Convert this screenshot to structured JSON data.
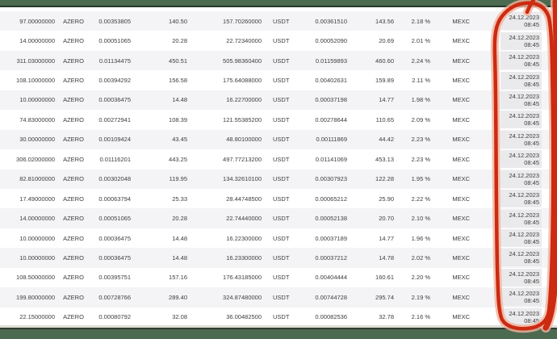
{
  "topbar": {
    "color": "#4c6a50"
  },
  "bottombar": {
    "color": "#4c6a50"
  },
  "table": {
    "columns": [
      "amount",
      "symbol",
      "price",
      "value",
      "total",
      "quote",
      "price_usdt",
      "value_usdt",
      "percent",
      "exchange",
      "datetime"
    ],
    "rows": [
      {
        "amount": "97.00000000",
        "symbol": "AZERO",
        "price": "0.00353805",
        "value": "140.50",
        "total": "157.70260000",
        "quote": "USDT",
        "price2": "0.00361510",
        "value2": "143.56",
        "percent": "2.18 %",
        "exchange": "MEXC",
        "date": "24.12.2023",
        "time": "08:45"
      },
      {
        "amount": "14.00000000",
        "symbol": "AZERO",
        "price": "0.00051065",
        "value": "20.28",
        "total": "22.72340000",
        "quote": "USDT",
        "price2": "0.00052090",
        "value2": "20.69",
        "percent": "2.01 %",
        "exchange": "MEXC",
        "date": "24.12.2023",
        "time": "08:45"
      },
      {
        "amount": "311.03000000",
        "symbol": "AZERO",
        "price": "0.01134475",
        "value": "450.51",
        "total": "505.98360400",
        "quote": "USDT",
        "price2": "0.01159893",
        "value2": "460.60",
        "percent": "2.24 %",
        "exchange": "MEXC",
        "date": "24.12.2023",
        "time": "08:45"
      },
      {
        "amount": "108.10000000",
        "symbol": "AZERO",
        "price": "0.00394292",
        "value": "156.58",
        "total": "175.64088000",
        "quote": "USDT",
        "price2": "0.00402631",
        "value2": "159.89",
        "percent": "2.11 %",
        "exchange": "MEXC",
        "date": "24.12.2023",
        "time": "08:45"
      },
      {
        "amount": "10.00000000",
        "symbol": "AZERO",
        "price": "0.00036475",
        "value": "14.48",
        "total": "16.22700000",
        "quote": "USDT",
        "price2": "0.00037198",
        "value2": "14.77",
        "percent": "1.98 %",
        "exchange": "MEXC",
        "date": "24.12.2023",
        "time": "08:45"
      },
      {
        "amount": "74.83000000",
        "symbol": "AZERO",
        "price": "0.00272941",
        "value": "108.39",
        "total": "121.55385200",
        "quote": "USDT",
        "price2": "0.00278644",
        "value2": "110.65",
        "percent": "2.09 %",
        "exchange": "MEXC",
        "date": "24.12.2023",
        "time": "08:45"
      },
      {
        "amount": "30.00000000",
        "symbol": "AZERO",
        "price": "0.00109424",
        "value": "43.45",
        "total": "48.80100000",
        "quote": "USDT",
        "price2": "0.00111869",
        "value2": "44.42",
        "percent": "2.23 %",
        "exchange": "MEXC",
        "date": "24.12.2023",
        "time": "08:45"
      },
      {
        "amount": "306.02000000",
        "symbol": "AZERO",
        "price": "0.01116201",
        "value": "443.25",
        "total": "497.77213200",
        "quote": "USDT",
        "price2": "0.01141069",
        "value2": "453.13",
        "percent": "2.23 %",
        "exchange": "MEXC",
        "date": "24.12.2023",
        "time": "08:45"
      },
      {
        "amount": "82.81000000",
        "symbol": "AZERO",
        "price": "0.00302048",
        "value": "119.95",
        "total": "134.32610100",
        "quote": "USDT",
        "price2": "0.00307923",
        "value2": "122.28",
        "percent": "1.95 %",
        "exchange": "MEXC",
        "date": "24.12.2023",
        "time": "08:45"
      },
      {
        "amount": "17.49000000",
        "symbol": "AZERO",
        "price": "0.00063794",
        "value": "25.33",
        "total": "28.44748500",
        "quote": "USDT",
        "price2": "0.00065212",
        "value2": "25.90",
        "percent": "2.22 %",
        "exchange": "MEXC",
        "date": "24.12.2023",
        "time": "08:45"
      },
      {
        "amount": "14.00000000",
        "symbol": "AZERO",
        "price": "0.00051065",
        "value": "20.28",
        "total": "22.74440000",
        "quote": "USDT",
        "price2": "0.00052138",
        "value2": "20.70",
        "percent": "2.10 %",
        "exchange": "MEXC",
        "date": "24.12.2023",
        "time": "08:45"
      },
      {
        "amount": "10.00000000",
        "symbol": "AZERO",
        "price": "0.00036475",
        "value": "14.48",
        "total": "16.22300000",
        "quote": "USDT",
        "price2": "0.00037189",
        "value2": "14.77",
        "percent": "1.96 %",
        "exchange": "MEXC",
        "date": "24.12.2023",
        "time": "08:45"
      },
      {
        "amount": "10.00000000",
        "symbol": "AZERO",
        "price": "0.00036475",
        "value": "14.48",
        "total": "16.23300000",
        "quote": "USDT",
        "price2": "0.00037212",
        "value2": "14.78",
        "percent": "2.02 %",
        "exchange": "MEXC",
        "date": "24.12.2023",
        "time": "08:45"
      },
      {
        "amount": "108.50000000",
        "symbol": "AZERO",
        "price": "0.00395751",
        "value": "157.16",
        "total": "176.43185000",
        "quote": "USDT",
        "price2": "0.00404444",
        "value2": "160.61",
        "percent": "2.20 %",
        "exchange": "MEXC",
        "date": "24.12.2023",
        "time": "08:45"
      },
      {
        "amount": "199.80000000",
        "symbol": "AZERO",
        "price": "0.00728766",
        "value": "289.40",
        "total": "324.87480000",
        "quote": "USDT",
        "price2": "0.00744728",
        "value2": "295.74",
        "percent": "2.19 %",
        "exchange": "MEXC",
        "date": "24.12.2023",
        "time": "08:45"
      },
      {
        "amount": "22.15000000",
        "symbol": "AZERO",
        "price": "0.00080792",
        "value": "32.08",
        "total": "36.00482500",
        "quote": "USDT",
        "price2": "0.00082536",
        "value2": "32.78",
        "percent": "2.16 %",
        "exchange": "MEXC",
        "date": "24.12.2023",
        "time": "08:45"
      }
    ]
  },
  "annotation": {
    "label": "red-circle-around-date-column",
    "core_color": "#cd2a12",
    "glow_color": "#f1b39c"
  }
}
